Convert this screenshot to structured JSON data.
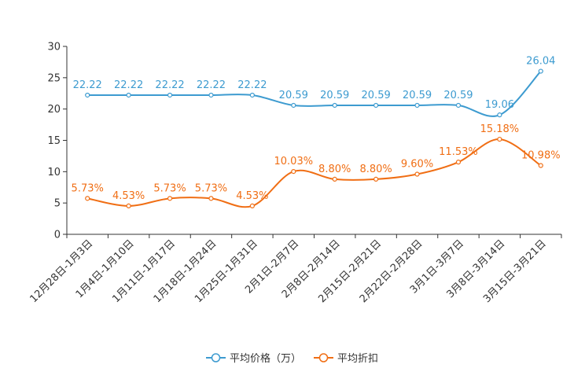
{
  "chart_data": {
    "type": "line",
    "categories": [
      "12月28日-1月3日",
      "1月4日-1月10日",
      "1月11日-1月17日",
      "1月18日-1月24日",
      "1月25日-1月31日",
      "2月1日-2月7日",
      "2月8日-2月14日",
      "2月15日-2月21日",
      "2月22日-2月28日",
      "3月1日-3月7日",
      "3月8日-3月14日",
      "3月15日-3月21日"
    ],
    "series": [
      {
        "name": "平均价格（万）",
        "color": "#3d9bd0",
        "values": [
          22.22,
          22.22,
          22.22,
          22.22,
          22.22,
          20.59,
          20.59,
          20.59,
          20.59,
          20.59,
          19.06,
          26.04
        ],
        "labels": [
          "22.22",
          "22.22",
          "22.22",
          "22.22",
          "22.22",
          "20.59",
          "20.59",
          "20.59",
          "20.59",
          "20.59",
          "19.06",
          "26.04"
        ]
      },
      {
        "name": "平均折扣",
        "color": "#f06e14",
        "values": [
          5.73,
          4.53,
          5.73,
          5.73,
          4.53,
          10.03,
          8.8,
          8.8,
          9.6,
          11.53,
          15.18,
          10.98
        ],
        "labels": [
          "5.73%",
          "4.53%",
          "5.73%",
          "5.73%",
          "4.53%",
          "10.03%",
          "8.80%",
          "8.80%",
          "9.60%",
          "11.53%",
          "15.18%",
          "10.98%"
        ]
      }
    ],
    "yticks": [
      "0",
      "5",
      "10",
      "15",
      "20",
      "25",
      "30"
    ],
    "ylim": [
      0,
      30
    ],
    "legend": "bottom-center"
  }
}
